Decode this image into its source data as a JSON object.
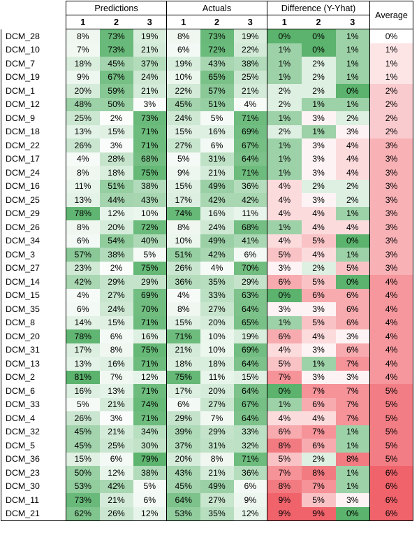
{
  "headers": {
    "groups": [
      "Predictions",
      "Actuals",
      "Difference (Y-Yhat)",
      "Average"
    ],
    "subcols": [
      "1",
      "2",
      "3"
    ]
  },
  "rows": [
    {
      "label": "DCM_28",
      "pred": [
        "8%",
        "73%",
        "19%"
      ],
      "act": [
        "8%",
        "73%",
        "19%"
      ],
      "diff": [
        "0%",
        "0%",
        "1%"
      ],
      "avg": "0%"
    },
    {
      "label": "DCM_10",
      "pred": [
        "7%",
        "73%",
        "21%"
      ],
      "act": [
        "6%",
        "72%",
        "22%"
      ],
      "diff": [
        "1%",
        "0%",
        "1%"
      ],
      "avg": "1%"
    },
    {
      "label": "DCM_7",
      "pred": [
        "18%",
        "45%",
        "37%"
      ],
      "act": [
        "19%",
        "43%",
        "38%"
      ],
      "diff": [
        "1%",
        "2%",
        "1%"
      ],
      "avg": "1%"
    },
    {
      "label": "DCM_19",
      "pred": [
        "9%",
        "67%",
        "24%"
      ],
      "act": [
        "10%",
        "65%",
        "25%"
      ],
      "diff": [
        "1%",
        "2%",
        "1%"
      ],
      "avg": "1%"
    },
    {
      "label": "DCM_1",
      "pred": [
        "20%",
        "59%",
        "21%"
      ],
      "act": [
        "22%",
        "57%",
        "21%"
      ],
      "diff": [
        "2%",
        "2%",
        "0%"
      ],
      "avg": "2%"
    },
    {
      "label": "DCM_12",
      "pred": [
        "48%",
        "50%",
        "3%"
      ],
      "act": [
        "45%",
        "51%",
        "4%"
      ],
      "diff": [
        "2%",
        "1%",
        "1%"
      ],
      "avg": "2%"
    },
    {
      "label": "DCM_9",
      "pred": [
        "25%",
        "2%",
        "73%"
      ],
      "act": [
        "24%",
        "5%",
        "71%"
      ],
      "diff": [
        "1%",
        "3%",
        "2%"
      ],
      "avg": "2%"
    },
    {
      "label": "DCM_18",
      "pred": [
        "13%",
        "15%",
        "71%"
      ],
      "act": [
        "15%",
        "16%",
        "69%"
      ],
      "diff": [
        "2%",
        "1%",
        "3%"
      ],
      "avg": "2%"
    },
    {
      "label": "DCM_22",
      "pred": [
        "26%",
        "3%",
        "71%"
      ],
      "act": [
        "27%",
        "6%",
        "67%"
      ],
      "diff": [
        "1%",
        "3%",
        "4%"
      ],
      "avg": "3%"
    },
    {
      "label": "DCM_17",
      "pred": [
        "4%",
        "28%",
        "68%"
      ],
      "act": [
        "5%",
        "31%",
        "64%"
      ],
      "diff": [
        "1%",
        "3%",
        "4%"
      ],
      "avg": "3%"
    },
    {
      "label": "DCM_24",
      "pred": [
        "8%",
        "18%",
        "75%"
      ],
      "act": [
        "9%",
        "21%",
        "71%"
      ],
      "diff": [
        "1%",
        "3%",
        "4%"
      ],
      "avg": "3%"
    },
    {
      "label": "DCM_16",
      "pred": [
        "11%",
        "51%",
        "38%"
      ],
      "act": [
        "15%",
        "49%",
        "36%"
      ],
      "diff": [
        "4%",
        "2%",
        "2%"
      ],
      "avg": "3%"
    },
    {
      "label": "DCM_25",
      "pred": [
        "13%",
        "44%",
        "43%"
      ],
      "act": [
        "17%",
        "42%",
        "42%"
      ],
      "diff": [
        "4%",
        "3%",
        "2%"
      ],
      "avg": "3%"
    },
    {
      "label": "DCM_29",
      "pred": [
        "78%",
        "12%",
        "10%"
      ],
      "act": [
        "74%",
        "16%",
        "11%"
      ],
      "diff": [
        "4%",
        "4%",
        "1%"
      ],
      "avg": "3%"
    },
    {
      "label": "DCM_26",
      "pred": [
        "8%",
        "20%",
        "72%"
      ],
      "act": [
        "8%",
        "24%",
        "68%"
      ],
      "diff": [
        "1%",
        "4%",
        "4%"
      ],
      "avg": "3%"
    },
    {
      "label": "DCM_34",
      "pred": [
        "6%",
        "54%",
        "40%"
      ],
      "act": [
        "10%",
        "49%",
        "41%"
      ],
      "diff": [
        "4%",
        "5%",
        "0%"
      ],
      "avg": "3%"
    },
    {
      "label": "DCM_3",
      "pred": [
        "57%",
        "38%",
        "5%"
      ],
      "act": [
        "51%",
        "42%",
        "6%"
      ],
      "diff": [
        "5%",
        "4%",
        "1%"
      ],
      "avg": "3%"
    },
    {
      "label": "DCM_27",
      "pred": [
        "23%",
        "2%",
        "75%"
      ],
      "act": [
        "26%",
        "4%",
        "70%"
      ],
      "diff": [
        "3%",
        "2%",
        "5%"
      ],
      "avg": "3%"
    },
    {
      "label": "DCM_14",
      "pred": [
        "42%",
        "29%",
        "29%"
      ],
      "act": [
        "36%",
        "35%",
        "29%"
      ],
      "diff": [
        "6%",
        "5%",
        "0%"
      ],
      "avg": "4%"
    },
    {
      "label": "DCM_15",
      "pred": [
        "4%",
        "27%",
        "69%"
      ],
      "act": [
        "4%",
        "33%",
        "63%"
      ],
      "diff": [
        "0%",
        "6%",
        "6%"
      ],
      "avg": "4%"
    },
    {
      "label": "DCM_35",
      "pred": [
        "6%",
        "24%",
        "70%"
      ],
      "act": [
        "8%",
        "27%",
        "64%"
      ],
      "diff": [
        "3%",
        "3%",
        "6%"
      ],
      "avg": "4%"
    },
    {
      "label": "DCM_8",
      "pred": [
        "14%",
        "15%",
        "71%"
      ],
      "act": [
        "15%",
        "20%",
        "65%"
      ],
      "diff": [
        "1%",
        "5%",
        "6%"
      ],
      "avg": "4%"
    },
    {
      "label": "DCM_20",
      "pred": [
        "78%",
        "6%",
        "16%"
      ],
      "act": [
        "71%",
        "10%",
        "19%"
      ],
      "diff": [
        "6%",
        "4%",
        "3%"
      ],
      "avg": "4%"
    },
    {
      "label": "DCM_31",
      "pred": [
        "17%",
        "8%",
        "75%"
      ],
      "act": [
        "21%",
        "10%",
        "69%"
      ],
      "diff": [
        "4%",
        "3%",
        "6%"
      ],
      "avg": "4%"
    },
    {
      "label": "DCM_13",
      "pred": [
        "13%",
        "16%",
        "71%"
      ],
      "act": [
        "18%",
        "18%",
        "64%"
      ],
      "diff": [
        "5%",
        "1%",
        "7%"
      ],
      "avg": "4%"
    },
    {
      "label": "DCM_2",
      "pred": [
        "81%",
        "7%",
        "12%"
      ],
      "act": [
        "75%",
        "11%",
        "15%"
      ],
      "diff": [
        "7%",
        "3%",
        "3%"
      ],
      "avg": "4%"
    },
    {
      "label": "DCM_6",
      "pred": [
        "16%",
        "13%",
        "71%"
      ],
      "act": [
        "17%",
        "20%",
        "64%"
      ],
      "diff": [
        "0%",
        "7%",
        "7%"
      ],
      "avg": "5%"
    },
    {
      "label": "DCM_33",
      "pred": [
        "5%",
        "21%",
        "74%"
      ],
      "act": [
        "6%",
        "27%",
        "67%"
      ],
      "diff": [
        "1%",
        "6%",
        "7%"
      ],
      "avg": "5%"
    },
    {
      "label": "DCM_4",
      "pred": [
        "26%",
        "3%",
        "71%"
      ],
      "act": [
        "29%",
        "7%",
        "64%"
      ],
      "diff": [
        "4%",
        "4%",
        "7%"
      ],
      "avg": "5%"
    },
    {
      "label": "DCM_32",
      "pred": [
        "45%",
        "21%",
        "34%"
      ],
      "act": [
        "39%",
        "29%",
        "33%"
      ],
      "diff": [
        "6%",
        "7%",
        "1%"
      ],
      "avg": "5%"
    },
    {
      "label": "DCM_5",
      "pred": [
        "45%",
        "25%",
        "30%"
      ],
      "act": [
        "37%",
        "31%",
        "32%"
      ],
      "diff": [
        "8%",
        "6%",
        "1%"
      ],
      "avg": "5%"
    },
    {
      "label": "DCM_36",
      "pred": [
        "15%",
        "6%",
        "79%"
      ],
      "act": [
        "20%",
        "8%",
        "71%"
      ],
      "diff": [
        "5%",
        "2%",
        "8%"
      ],
      "avg": "5%"
    },
    {
      "label": "DCM_23",
      "pred": [
        "50%",
        "12%",
        "38%"
      ],
      "act": [
        "43%",
        "21%",
        "36%"
      ],
      "diff": [
        "7%",
        "8%",
        "1%"
      ],
      "avg": "6%"
    },
    {
      "label": "DCM_30",
      "pred": [
        "53%",
        "42%",
        "5%"
      ],
      "act": [
        "45%",
        "49%",
        "6%"
      ],
      "diff": [
        "8%",
        "7%",
        "1%"
      ],
      "avg": "6%"
    },
    {
      "label": "DCM_11",
      "pred": [
        "73%",
        "21%",
        "6%"
      ],
      "act": [
        "64%",
        "27%",
        "9%"
      ],
      "diff": [
        "9%",
        "5%",
        "3%"
      ],
      "avg": "6%"
    },
    {
      "label": "DCM_21",
      "pred": [
        "62%",
        "26%",
        "12%"
      ],
      "act": [
        "53%",
        "35%",
        "12%"
      ],
      "diff": [
        "9%",
        "9%",
        "0%"
      ],
      "avg": "6%"
    }
  ],
  "colors": {
    "probability_high": "#5bb36d",
    "probability_low": "#ffffff",
    "difference_low": "#5bb36d",
    "difference_mid": "#ffffff",
    "difference_high": "#f0636b",
    "average_low": "#ffffff",
    "average_high": "#f0636b",
    "grid": "#000000"
  }
}
